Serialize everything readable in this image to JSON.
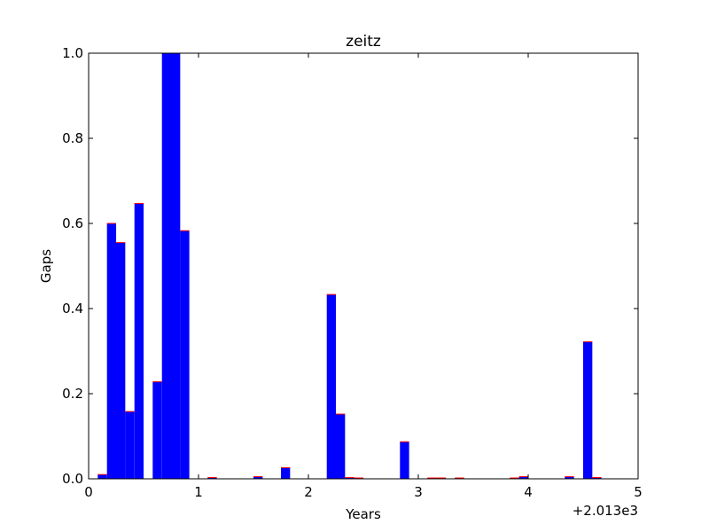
{
  "chart_data": {
    "type": "bar",
    "title": "zeitz",
    "xlabel": "Years",
    "ylabel": "Gaps",
    "x_offset_label": "+2.013e3",
    "xlim": [
      0,
      5
    ],
    "ylim": [
      0,
      1.0
    ],
    "xticks": [
      "0",
      "1",
      "2",
      "3",
      "4",
      "5"
    ],
    "yticks": [
      "0.0",
      "0.2",
      "0.4",
      "0.6",
      "0.8",
      "1.0"
    ],
    "bar_width": 0.0833,
    "bar_color": "#0000ff",
    "edge_color": "#ff0000",
    "grid": false,
    "bars": [
      {
        "x": 0.083,
        "value": 0.01
      },
      {
        "x": 0.167,
        "value": 0.6
      },
      {
        "x": 0.25,
        "value": 0.555
      },
      {
        "x": 0.333,
        "value": 0.158
      },
      {
        "x": 0.417,
        "value": 0.647
      },
      {
        "x": 0.583,
        "value": 0.228
      },
      {
        "x": 0.667,
        "value": 1.0
      },
      {
        "x": 0.75,
        "value": 1.0
      },
      {
        "x": 0.833,
        "value": 0.583
      },
      {
        "x": 1.083,
        "value": 0.003
      },
      {
        "x": 1.5,
        "value": 0.005
      },
      {
        "x": 1.75,
        "value": 0.026
      },
      {
        "x": 2.167,
        "value": 0.433
      },
      {
        "x": 2.25,
        "value": 0.152
      },
      {
        "x": 2.333,
        "value": 0.003
      },
      {
        "x": 2.417,
        "value": 0.002
      },
      {
        "x": 2.833,
        "value": 0.087
      },
      {
        "x": 3.083,
        "value": 0.002
      },
      {
        "x": 3.167,
        "value": 0.002
      },
      {
        "x": 3.333,
        "value": 0.002
      },
      {
        "x": 3.833,
        "value": 0.002
      },
      {
        "x": 3.917,
        "value": 0.005
      },
      {
        "x": 4.333,
        "value": 0.005
      },
      {
        "x": 4.5,
        "value": 0.322
      },
      {
        "x": 4.583,
        "value": 0.003
      }
    ]
  }
}
